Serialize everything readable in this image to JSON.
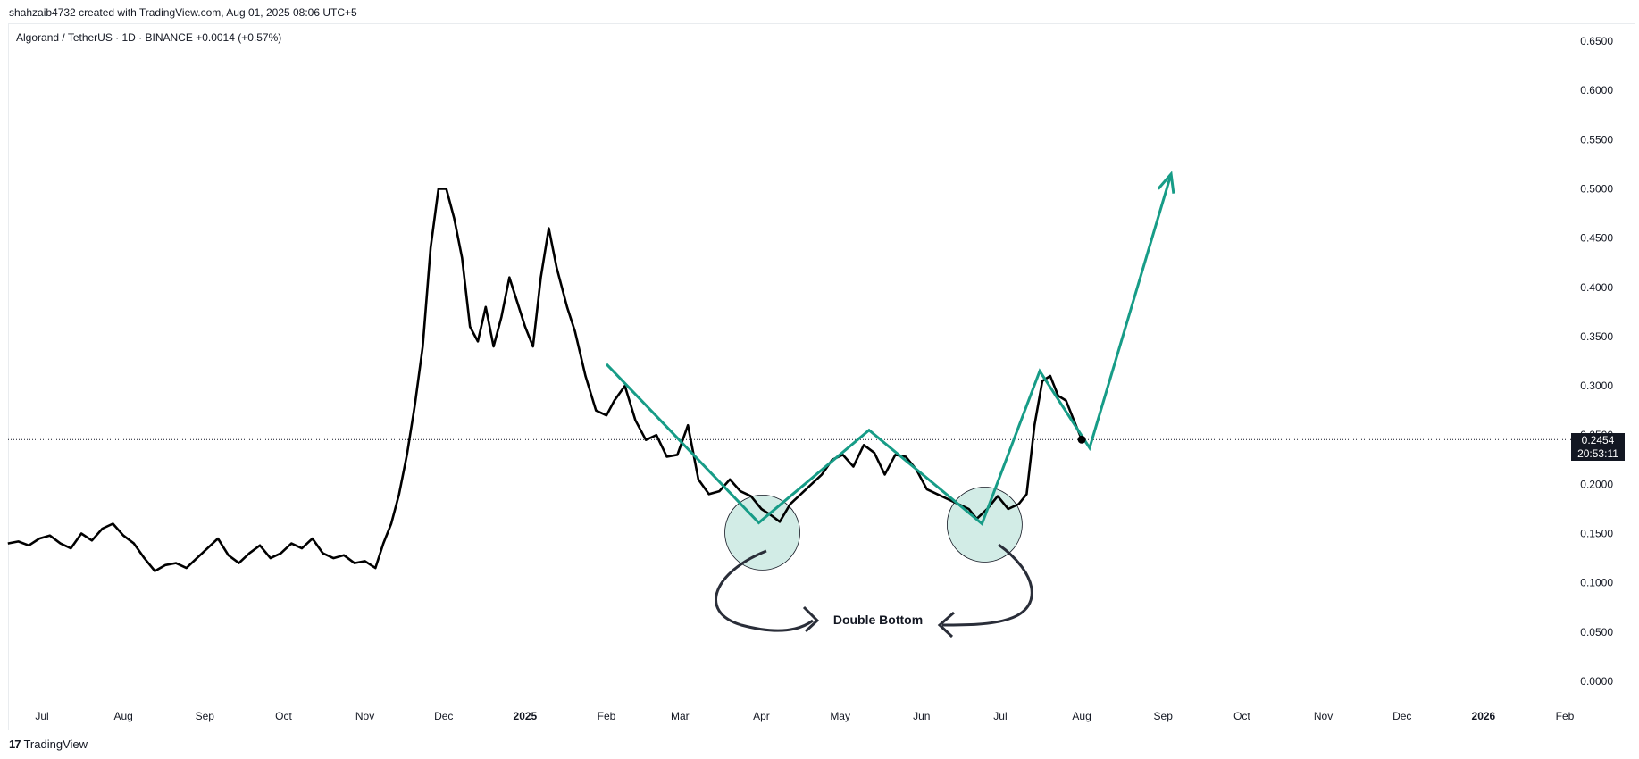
{
  "header": {
    "created_text": "shahzaib4732 created with TradingView.com, Aug 01, 2025 08:06 UTC+5",
    "symbol_text": "Algorand / TetherUS · 1D · BINANCE  +0.0014 (+0.57%)"
  },
  "footer": {
    "logo_text": "17",
    "brand": "TradingView"
  },
  "price_badge": {
    "price": "0.2454",
    "countdown": "20:53:11"
  },
  "annotation": {
    "label": "Double Bottom"
  },
  "colors": {
    "price_line": "#000000",
    "pattern": "#179C87",
    "circle_fill": "#D2ECE6",
    "badge_bg": "#131722"
  },
  "chart_data": {
    "type": "line",
    "title": "Algorand / TetherUS · 1D · BINANCE",
    "y_axis": {
      "ticks": [
        "0.6500",
        "0.6000",
        "0.5500",
        "0.5000",
        "0.4500",
        "0.4000",
        "0.3500",
        "0.3000",
        "0.2500",
        "0.2000",
        "0.1500",
        "0.1000",
        "0.0500",
        "0.0000"
      ],
      "tick_values": [
        0.65,
        0.6,
        0.55,
        0.5,
        0.45,
        0.4,
        0.35,
        0.3,
        0.25,
        0.2,
        0.15,
        0.1,
        0.05,
        0.0
      ],
      "range": [
        0.0,
        0.65
      ]
    },
    "x_axis": {
      "ticks": [
        "Jul",
        "Aug",
        "Sep",
        "Oct",
        "Nov",
        "Dec",
        "2025",
        "Feb",
        "Mar",
        "Apr",
        "May",
        "Jun",
        "Jul",
        "Aug",
        "Sep",
        "Oct",
        "Nov",
        "Dec",
        "2026",
        "Feb"
      ],
      "tick_dates": [
        "2024-07-01",
        "2024-08-01",
        "2024-09-01",
        "2024-10-01",
        "2024-11-01",
        "2024-12-01",
        "2025-01-01",
        "2025-02-01",
        "2025-03-01",
        "2025-04-01",
        "2025-05-01",
        "2025-06-01",
        "2025-07-01",
        "2025-08-01",
        "2025-09-01",
        "2025-10-01",
        "2025-11-01",
        "2025-12-01",
        "2026-01-01",
        "2026-02-01"
      ],
      "bold_ticks": [
        "2025",
        "2026"
      ]
    },
    "last_price": 0.2454,
    "series": [
      {
        "x": [
          "2024-06-18",
          "2024-06-22",
          "2024-06-26",
          "2024-06-30",
          "2024-07-04",
          "2024-07-08",
          "2024-07-12",
          "2024-07-16",
          "2024-07-20",
          "2024-07-24",
          "2024-07-28",
          "2024-08-01",
          "2024-08-05",
          "2024-08-09",
          "2024-08-13",
          "2024-08-17",
          "2024-08-21",
          "2024-08-25",
          "2024-08-29",
          "2024-09-02",
          "2024-09-06",
          "2024-09-10",
          "2024-09-14",
          "2024-09-18",
          "2024-09-22",
          "2024-09-26",
          "2024-09-30",
          "2024-10-04",
          "2024-10-08",
          "2024-10-12",
          "2024-10-16",
          "2024-10-20",
          "2024-10-24",
          "2024-10-28",
          "2024-11-01",
          "2024-11-05",
          "2024-11-08",
          "2024-11-11",
          "2024-11-14",
          "2024-11-17",
          "2024-11-20",
          "2024-11-23",
          "2024-11-26",
          "2024-11-29",
          "2024-12-02",
          "2024-12-05",
          "2024-12-08",
          "2024-12-11",
          "2024-12-14",
          "2024-12-17",
          "2024-12-20",
          "2024-12-23",
          "2024-12-26",
          "2024-12-29",
          "2025-01-01",
          "2025-01-04",
          "2025-01-07",
          "2025-01-10",
          "2025-01-13",
          "2025-01-17",
          "2025-01-20",
          "2025-01-24",
          "2025-01-28",
          "2025-02-01",
          "2025-02-04",
          "2025-02-08",
          "2025-02-12",
          "2025-02-16",
          "2025-02-20",
          "2025-02-24",
          "2025-02-28",
          "2025-03-04",
          "2025-03-08",
          "2025-03-12",
          "2025-03-16",
          "2025-03-20",
          "2025-03-24",
          "2025-03-28",
          "2025-04-01",
          "2025-04-05",
          "2025-04-08",
          "2025-04-12",
          "2025-04-16",
          "2025-04-20",
          "2025-04-24",
          "2025-04-28",
          "2025-05-02",
          "2025-05-06",
          "2025-05-10",
          "2025-05-14",
          "2025-05-18",
          "2025-05-22",
          "2025-05-26",
          "2025-05-30",
          "2025-06-03",
          "2025-06-07",
          "2025-06-11",
          "2025-06-15",
          "2025-06-19",
          "2025-06-22",
          "2025-06-26",
          "2025-06-30",
          "2025-07-04",
          "2025-07-08",
          "2025-07-11",
          "2025-07-14",
          "2025-07-17",
          "2025-07-20",
          "2025-07-23",
          "2025-07-26",
          "2025-07-29",
          "2025-08-01"
        ],
        "y": [
          0.14,
          0.142,
          0.138,
          0.145,
          0.148,
          0.14,
          0.135,
          0.15,
          0.143,
          0.155,
          0.16,
          0.148,
          0.14,
          0.125,
          0.112,
          0.118,
          0.12,
          0.115,
          0.125,
          0.135,
          0.145,
          0.128,
          0.12,
          0.13,
          0.138,
          0.125,
          0.13,
          0.14,
          0.135,
          0.145,
          0.13,
          0.125,
          0.128,
          0.12,
          0.122,
          0.115,
          0.14,
          0.16,
          0.19,
          0.23,
          0.28,
          0.34,
          0.44,
          0.5,
          0.5,
          0.47,
          0.43,
          0.36,
          0.345,
          0.38,
          0.34,
          0.37,
          0.41,
          0.385,
          0.36,
          0.34,
          0.41,
          0.46,
          0.42,
          0.38,
          0.355,
          0.31,
          0.275,
          0.27,
          0.285,
          0.3,
          0.265,
          0.245,
          0.25,
          0.228,
          0.23,
          0.26,
          0.205,
          0.19,
          0.193,
          0.205,
          0.193,
          0.188,
          0.175,
          0.168,
          0.162,
          0.18,
          0.19,
          0.2,
          0.21,
          0.225,
          0.23,
          0.218,
          0.24,
          0.232,
          0.21,
          0.23,
          0.228,
          0.215,
          0.195,
          0.19,
          0.185,
          0.18,
          0.175,
          0.165,
          0.175,
          0.188,
          0.175,
          0.18,
          0.19,
          0.26,
          0.305,
          0.31,
          0.29,
          0.285,
          0.265,
          0.2454
        ]
      }
    ],
    "pattern_line": {
      "x": [
        "2025-02-01",
        "2025-03-31",
        "2025-05-12",
        "2025-06-24",
        "2025-07-16",
        "2025-08-04",
        "2025-09-04"
      ],
      "y": [
        0.322,
        0.161,
        0.255,
        0.16,
        0.315,
        0.237,
        0.515
      ]
    },
    "annotations": [
      "Double Bottom"
    ]
  }
}
